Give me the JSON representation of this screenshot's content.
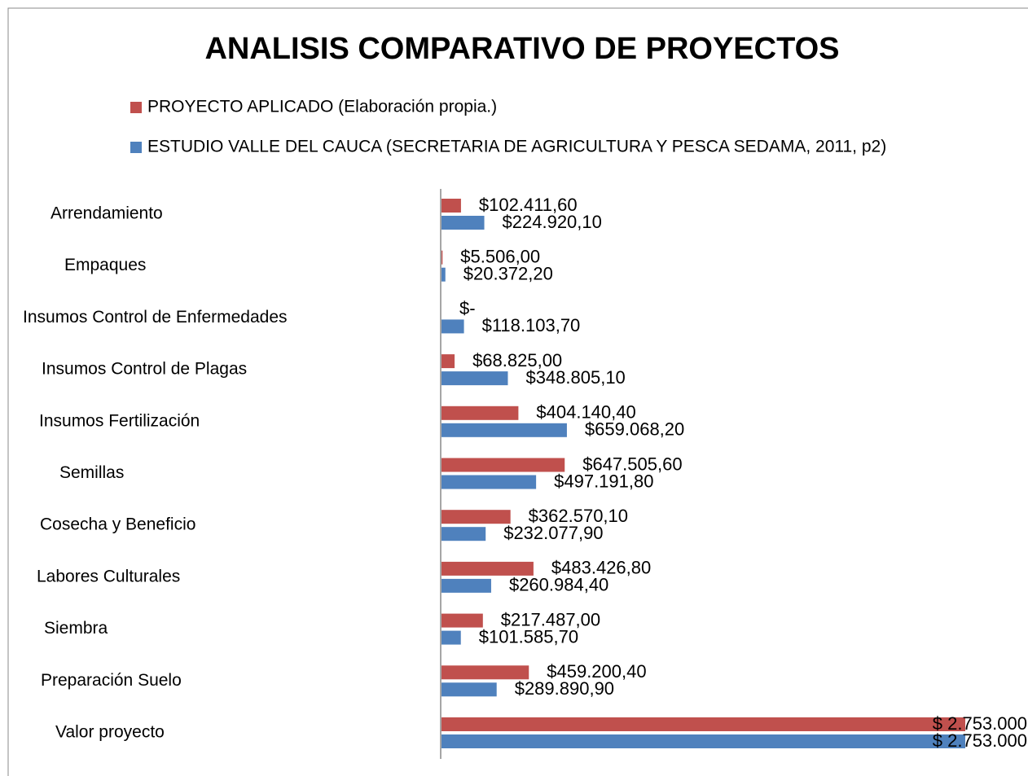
{
  "chart_data": {
    "type": "bar",
    "orientation": "horizontal",
    "title": "ANALISIS COMPARATIVO DE PROYECTOS",
    "categories": [
      "Arrendamiento",
      "Empaques",
      "Insumos Control de Enfermedades",
      "Insumos Control de Plagas",
      "Insumos Fertilización",
      "Semillas",
      "Cosecha y Beneficio",
      "Labores Culturales",
      "Siembra",
      "Preparación Suelo",
      "Valor proyecto"
    ],
    "series": [
      {
        "name": "PROYECTO APLICADO (Elaboración propia.)",
        "color": "#c0504d",
        "values": [
          102411.6,
          5506,
          0,
          68825,
          404140.4,
          647505.6,
          362570.1,
          483426.8,
          217487,
          459200.4,
          2753000
        ],
        "value_labels": [
          "$102.411,60",
          "$5.506,00",
          "$-",
          "$68.825,00",
          "$404.140,40",
          "$647.505,60",
          "$362.570,10",
          "$483.426,80",
          "$217.487,00",
          "$459.200,40",
          "$ 2.753.000"
        ]
      },
      {
        "name": "ESTUDIO VALLE DEL CAUCA (SECRETARIA DE AGRICULTURA Y PESCA SEDAMA, 2011, p2)",
        "color": "#4f81bd",
        "values": [
          224920.1,
          20372.2,
          118103.7,
          348805.1,
          659068.2,
          497191.8,
          232077.9,
          260984.4,
          101585.7,
          289890.9,
          2753000
        ],
        "value_labels": [
          "$224.920,10",
          "$20.372,20",
          "$118.103,70",
          "$348.805,10",
          "$659.068,20",
          "$497.191,80",
          "$232.077,90",
          "$260.984,40",
          "$101.585,70",
          "$289.890,90",
          "$ 2.753.000"
        ]
      }
    ],
    "legend": "top"
  }
}
